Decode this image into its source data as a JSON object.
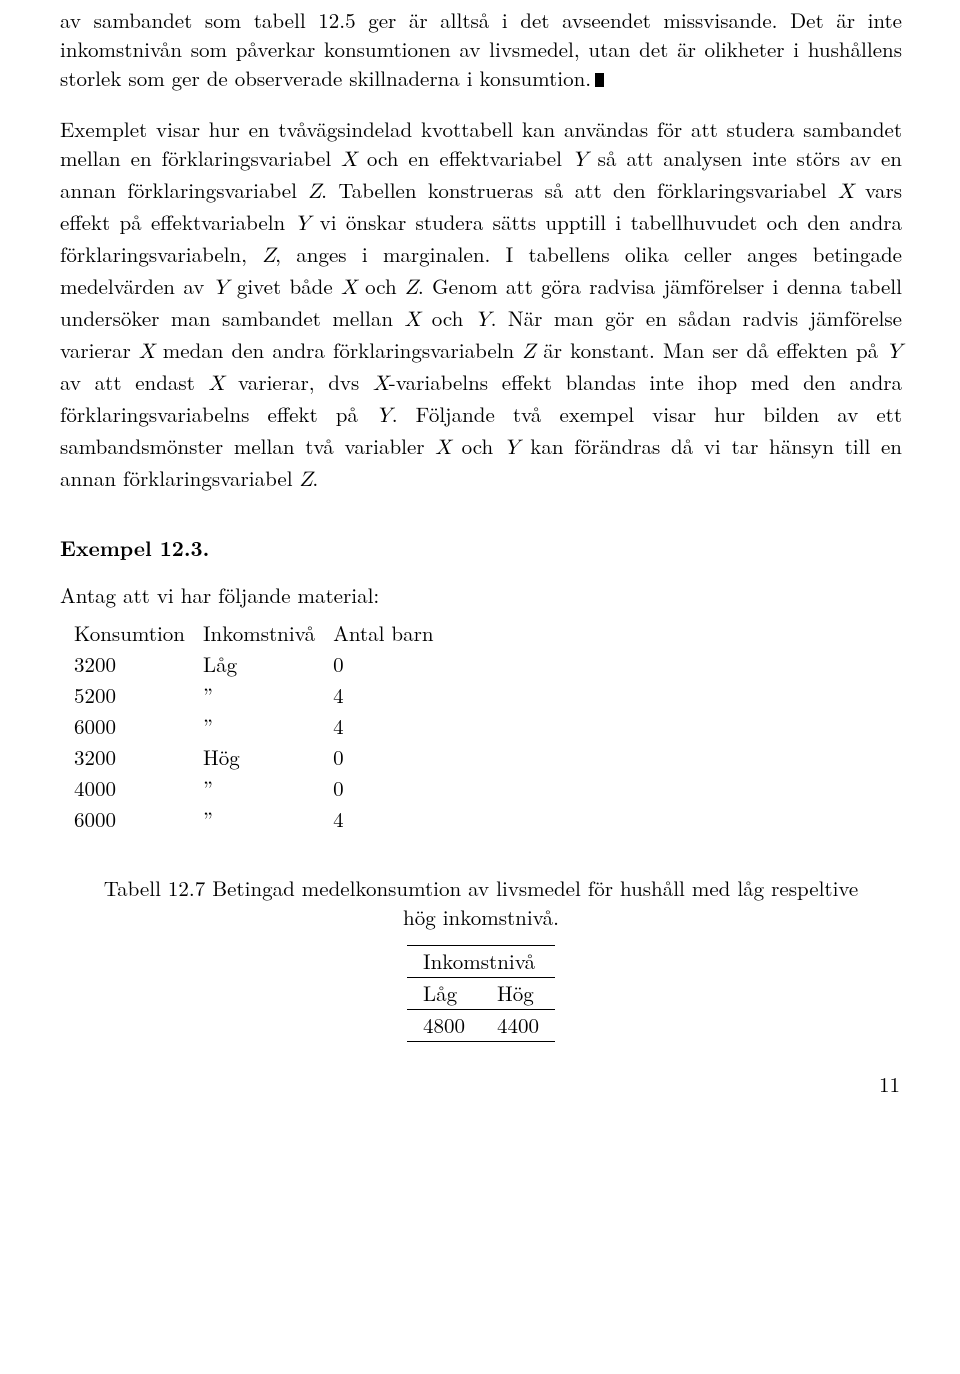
{
  "paragraphs": {
    "p1_a": "av sambandet som tabell 12.5 ger är alltså i det avseendet missvisande. Det är inte inkomstnivån som påverkar konsumtionen av livsmedel, utan det är olikheter i hushållens storlek som ger de observerade skillnaderna i konsumtion.",
    "p2_a": "Exemplet visar hur en tvåvägsindelad kvottabell kan användas för att studera sambandet mellan en förklaringsvariabel ",
    "p2_b": " och en effektvariabel ",
    "p2_c": " så att analysen inte störs av en annan förklaringsvariabel ",
    "p2_d": ". Tabellen konstrueras så att den förklaringsvariabel ",
    "p2_e": " vars effekt på effektvariabeln ",
    "p2_f": " vi önskar studera sätts upptill i tabellhuvudet och den andra förklaringsvariabeln, ",
    "p2_g": ", anges i marginalen. I tabellens olika celler anges betingade medelvärden av ",
    "p2_h": " givet både ",
    "p2_i": " och ",
    "p2_j": ". Genom att göra radvisa jämförelser i denna tabell undersöker man sambandet mellan ",
    "p2_k": " och ",
    "p2_l": ". När man gör en sådan radvis jämförelse varierar ",
    "p2_m": " medan den andra förklaringsvariabeln ",
    "p2_n": " är konstant. Man ser då effekten på ",
    "p2_o": " av att endast ",
    "p2_p": " varierar, dvs ",
    "p2_q": "-variabelns effekt blandas inte ihop med den andra förklaringsvariabelns effekt på ",
    "p2_r": ". Följande två exempel visar hur bilden av ett sambandsmönster mellan två variabler ",
    "p2_s": " och ",
    "p2_t": " kan förändras då vi tar hänsyn till en annan förklaringsvariabel ",
    "p2_u": "."
  },
  "vars": {
    "X": "X",
    "Y": "Y",
    "Z": "Z"
  },
  "example_heading": "Exempel 12.3.",
  "intro_line": "Antag att vi har följande material:",
  "data_table": {
    "columns": [
      "Konsumtion",
      "Inkomstnivå",
      "Antal barn"
    ],
    "rows": [
      [
        "3200",
        "Låg",
        "0"
      ],
      [
        "5200",
        "”",
        "4"
      ],
      [
        "6000",
        "”",
        "4"
      ],
      [
        "3200",
        "Hög",
        "0"
      ],
      [
        "4000",
        "”",
        "0"
      ],
      [
        "6000",
        "”",
        "4"
      ]
    ]
  },
  "caption": "Tabell 12.7 Betingad medelkonsumtion av livsmedel för hushåll med låg respeltive hög inkomstnivå.",
  "small_table": {
    "header": "Inkomstnivå",
    "sub": [
      "Låg",
      "Hög"
    ],
    "values": [
      "4800",
      "4400"
    ]
  },
  "page_number": "11"
}
